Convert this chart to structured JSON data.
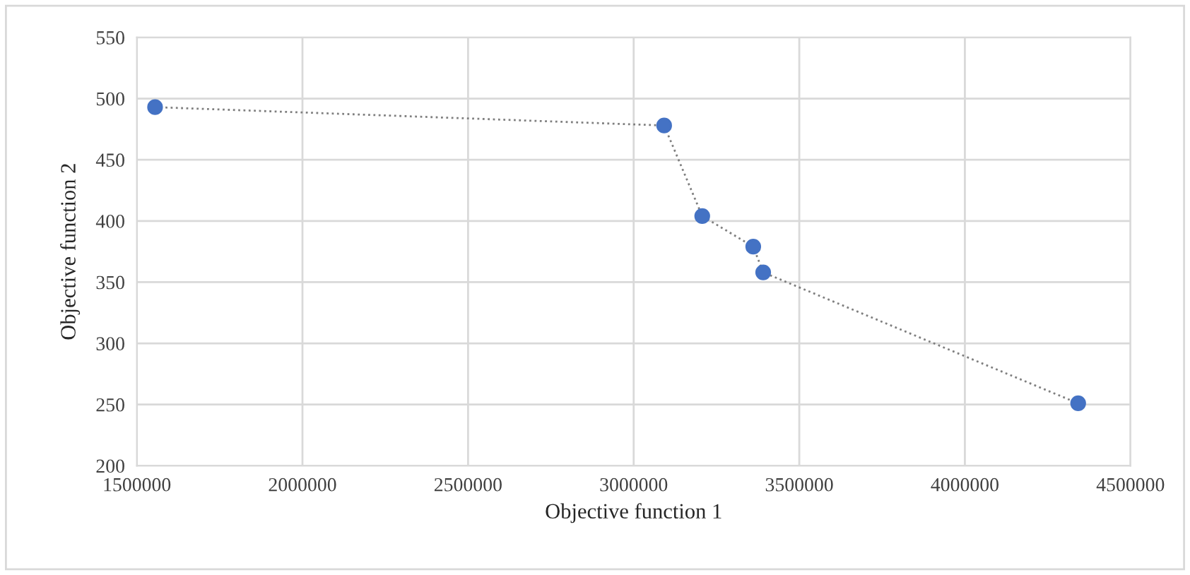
{
  "chart_data": {
    "type": "line",
    "xlabel": "Objective function 1",
    "ylabel": "Objective function 2",
    "x": [
      1555000,
      3092000,
      3207000,
      3361000,
      3391000,
      4342000
    ],
    "series": [
      {
        "color": "#4472c4",
        "values": [
          493,
          478,
          404,
          379,
          358,
          251
        ]
      }
    ],
    "xlim": [
      1500000,
      4500000
    ],
    "xticks": [
      1500000,
      2000000,
      2500000,
      3000000,
      3500000,
      4000000,
      4500000
    ],
    "ylim": [
      200,
      550
    ],
    "yticks": [
      200,
      250,
      300,
      350,
      400,
      450,
      500,
      550
    ],
    "grid": true,
    "marker": "circle",
    "line_style": "dotted"
  }
}
